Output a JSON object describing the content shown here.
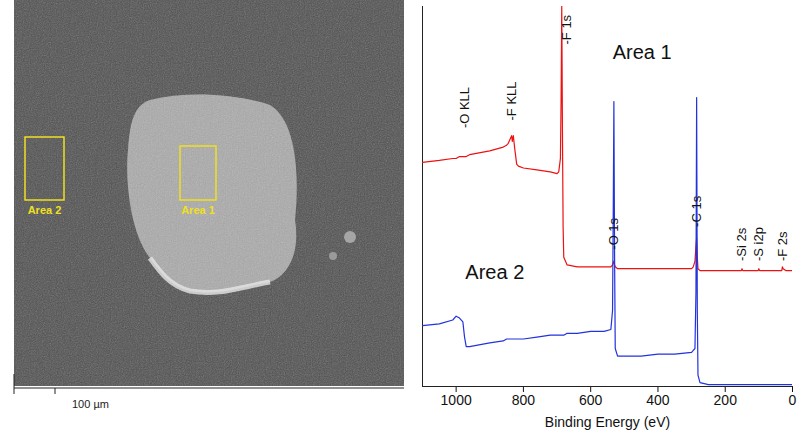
{
  "image_panel": {
    "regions": [
      {
        "label": "Area 1"
      },
      {
        "label": "Area 2"
      }
    ],
    "scale_bar": "100 µm"
  },
  "chart_data": {
    "type": "line",
    "xlabel": "Binding Energy (eV)",
    "xlim": [
      1100,
      0
    ],
    "xticks": [
      1000,
      800,
      600,
      400,
      200,
      0
    ],
    "ylim": [
      0,
      100
    ],
    "tick_labels": "x",
    "x": [
      1100,
      1050,
      1010,
      1000,
      990,
      980,
      975,
      970,
      960,
      900,
      860,
      850,
      845,
      840,
      835,
      833,
      830,
      825,
      820,
      815,
      800,
      760,
      720,
      700,
      695,
      690,
      688,
      686,
      684,
      682,
      680,
      670,
      640,
      600,
      560,
      540,
      535,
      533,
      531,
      529,
      527,
      520,
      500,
      450,
      400,
      350,
      300,
      295,
      290,
      287,
      285,
      283,
      281,
      275,
      250,
      200,
      160,
      152,
      150,
      148,
      140,
      110,
      102,
      100,
      98,
      90,
      50,
      32,
      30,
      28,
      20,
      0
    ],
    "series": [
      {
        "name": "Area 1",
        "color": "#ee1111",
        "label_x": 447,
        "label_y": 88,
        "values": [
          59,
          59.5,
          60,
          60,
          60.5,
          60.5,
          60.5,
          60.5,
          61,
          62,
          63,
          63.5,
          64,
          65,
          66,
          64.5,
          66,
          62,
          58.5,
          58,
          57.5,
          57,
          56.5,
          56,
          56.5,
          60,
          75,
          100,
          68,
          42,
          34,
          32,
          31.5,
          31.5,
          31.5,
          31.5,
          32,
          32.5,
          33,
          32,
          31.5,
          31,
          31,
          31,
          31,
          31,
          31,
          31.5,
          33,
          37,
          39,
          34,
          31,
          30.5,
          30.5,
          30.5,
          30.5,
          30.5,
          31,
          30.5,
          30.5,
          30.5,
          30.5,
          31,
          30.5,
          30.5,
          30.5,
          30.5,
          31.5,
          31,
          30.5,
          30.5
        ]
      },
      {
        "name": "Area 2",
        "color": "#2233dd",
        "label_x": 885,
        "label_y": 30,
        "values": [
          16,
          16.5,
          17.5,
          18.5,
          18,
          17,
          13,
          10.5,
          10.5,
          11.5,
          12,
          12.5,
          12.5,
          12.5,
          12.5,
          12.5,
          12.5,
          12.5,
          12.5,
          12.5,
          12.5,
          13,
          13.5,
          13.5,
          13.5,
          13.5,
          13.5,
          13.5,
          13.5,
          13.5,
          13.5,
          14,
          14,
          14.5,
          14.5,
          15,
          20,
          45,
          75,
          35,
          10,
          8,
          8,
          8,
          8.5,
          8.5,
          9,
          9.5,
          10,
          25,
          76,
          20,
          3,
          1,
          0.5,
          0.5,
          0.5,
          0.5,
          0.5,
          0.5,
          0.5,
          0.5,
          0.5,
          0.5,
          0.5,
          0.5,
          0.5,
          0.5,
          0.5,
          0.5,
          0.5,
          0.5
        ]
      }
    ],
    "annotations": [
      {
        "text": "-O KLL",
        "x": 975,
        "y": 68
      },
      {
        "text": "-F KLL",
        "x": 833,
        "y": 70
      },
      {
        "text": "-F 1s",
        "x": 672,
        "y": 90
      },
      {
        "text": "-O 1s",
        "x": 531,
        "y": 36
      },
      {
        "text": "-C 1s",
        "x": 285,
        "y": 42
      },
      {
        "text": "-Si 2s",
        "x": 150,
        "y": 33
      },
      {
        "text": "-S i2p",
        "x": 100,
        "y": 33
      },
      {
        "text": "-F 2s",
        "x": 28,
        "y": 33
      }
    ]
  }
}
